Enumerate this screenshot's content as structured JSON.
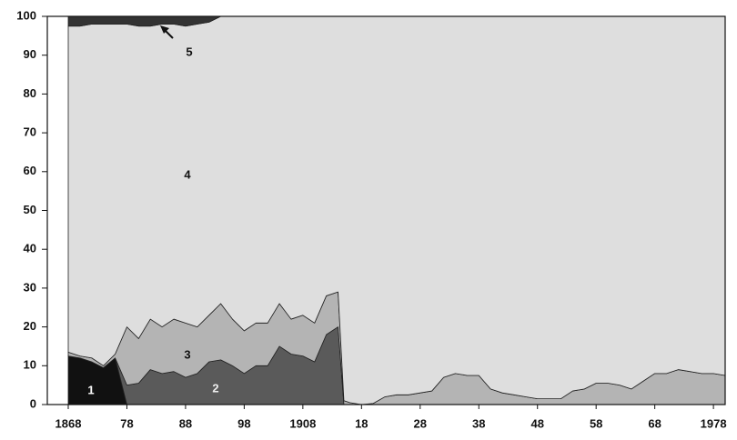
{
  "chart_data": {
    "type": "stacked_area",
    "x": [
      1868,
      1870,
      1872,
      1874,
      1876,
      1878,
      1880,
      1882,
      1884,
      1886,
      1888,
      1890,
      1892,
      1894,
      1896,
      1898,
      1900,
      1902,
      1904,
      1906,
      1908,
      1910,
      1912,
      1914,
      1915,
      1916,
      1918,
      1920,
      1922,
      1924,
      1926,
      1928,
      1930,
      1932,
      1934,
      1936,
      1938,
      1940,
      1942,
      1944,
      1946,
      1948,
      1950,
      1952,
      1954,
      1956,
      1958,
      1960,
      1962,
      1964,
      1966,
      1968,
      1970,
      1972,
      1974,
      1976,
      1978,
      1980
    ],
    "series": [
      {
        "name": "1",
        "color": "#111111",
        "values": [
          12.5,
          12,
          11,
          9.5,
          12,
          0,
          0,
          0,
          0,
          0,
          0,
          0,
          0,
          0,
          0,
          0,
          0,
          0,
          0,
          0,
          0,
          0,
          0,
          0,
          0,
          0,
          0,
          0,
          0,
          0,
          0,
          0,
          0,
          0,
          0,
          0,
          0,
          0,
          0,
          0,
          0,
          0,
          0,
          0,
          0,
          0,
          0,
          0,
          0,
          0,
          0,
          0,
          0,
          0,
          0,
          0,
          0,
          0
        ]
      },
      {
        "name": "2",
        "color": "#5a5a5a",
        "values": [
          0,
          0,
          0,
          0,
          0,
          5,
          5.5,
          9,
          8,
          8.5,
          7,
          8,
          11,
          11.5,
          10,
          8,
          10,
          10,
          15,
          13,
          12.5,
          11,
          18,
          20,
          0,
          0,
          0,
          0,
          0,
          0,
          0,
          0,
          0,
          0,
          0,
          0,
          0,
          0,
          0,
          0,
          0,
          0,
          0,
          0,
          0,
          0,
          0,
          0,
          0,
          0,
          0,
          0,
          0,
          0,
          0,
          0,
          0,
          0
        ]
      },
      {
        "name": "3",
        "color": "#b4b4b4",
        "values": [
          1,
          0.5,
          1,
          0.5,
          1,
          15,
          11.5,
          13,
          12,
          13.5,
          14,
          12,
          12,
          14.5,
          12,
          11,
          11,
          11,
          11,
          9,
          10.5,
          10,
          10,
          9,
          1,
          0.5,
          0,
          0.3,
          2,
          2.5,
          2.5,
          3,
          3.5,
          7,
          8,
          7.5,
          7.5,
          4,
          3,
          2.5,
          2,
          1.5,
          1.5,
          1.5,
          3.5,
          4,
          5.5,
          5.5,
          5,
          4,
          6,
          8,
          8,
          9,
          8.5,
          8,
          8,
          7.5
        ]
      },
      {
        "name": "4",
        "color": "#dedede",
        "values": [
          84,
          85,
          86,
          88,
          85,
          78,
          80.5,
          75.5,
          78,
          76,
          76.5,
          78,
          75.5,
          74,
          78,
          81,
          79,
          79,
          74,
          78,
          77,
          79,
          72,
          71,
          99,
          99.5,
          100,
          99.7,
          98,
          97.5,
          97.5,
          97,
          96.5,
          93,
          92,
          92.5,
          92.5,
          96,
          97,
          97.5,
          98,
          98.5,
          98.5,
          98.5,
          96.5,
          96,
          94.5,
          94.5,
          95,
          96,
          94,
          92,
          92,
          91,
          91.5,
          92,
          92,
          92.5
        ]
      },
      {
        "name": "5",
        "color": "#333333",
        "values": [
          2.5,
          2.5,
          2,
          2,
          2,
          2,
          2.5,
          2.5,
          2,
          2,
          2.5,
          2,
          1.5,
          0,
          0,
          0,
          0,
          0,
          0,
          0,
          0,
          0,
          0,
          0,
          0,
          0,
          0,
          0,
          0,
          0,
          0,
          0,
          0,
          0,
          0,
          0,
          0,
          0,
          0,
          0,
          0,
          0,
          0,
          0,
          0,
          0,
          0,
          0,
          0,
          0,
          0,
          0,
          0,
          0,
          0,
          0,
          0,
          0
        ]
      }
    ],
    "xlim": [
      1868,
      1980
    ],
    "xticks": [
      {
        "value": 1868,
        "label": "1868"
      },
      {
        "value": 1878,
        "label": "78"
      },
      {
        "value": 1888,
        "label": "88"
      },
      {
        "value": 1898,
        "label": "98"
      },
      {
        "value": 1908,
        "label": "1908"
      },
      {
        "value": 1918,
        "label": "18"
      },
      {
        "value": 1928,
        "label": "28"
      },
      {
        "value": 1938,
        "label": "38"
      },
      {
        "value": 1948,
        "label": "48"
      },
      {
        "value": 1958,
        "label": "58"
      },
      {
        "value": 1968,
        "label": "68"
      },
      {
        "value": 1978,
        "label": "1978"
      }
    ],
    "ylim": [
      0,
      100
    ],
    "yticks": [
      0,
      10,
      20,
      30,
      40,
      50,
      60,
      70,
      80,
      90,
      100
    ]
  }
}
